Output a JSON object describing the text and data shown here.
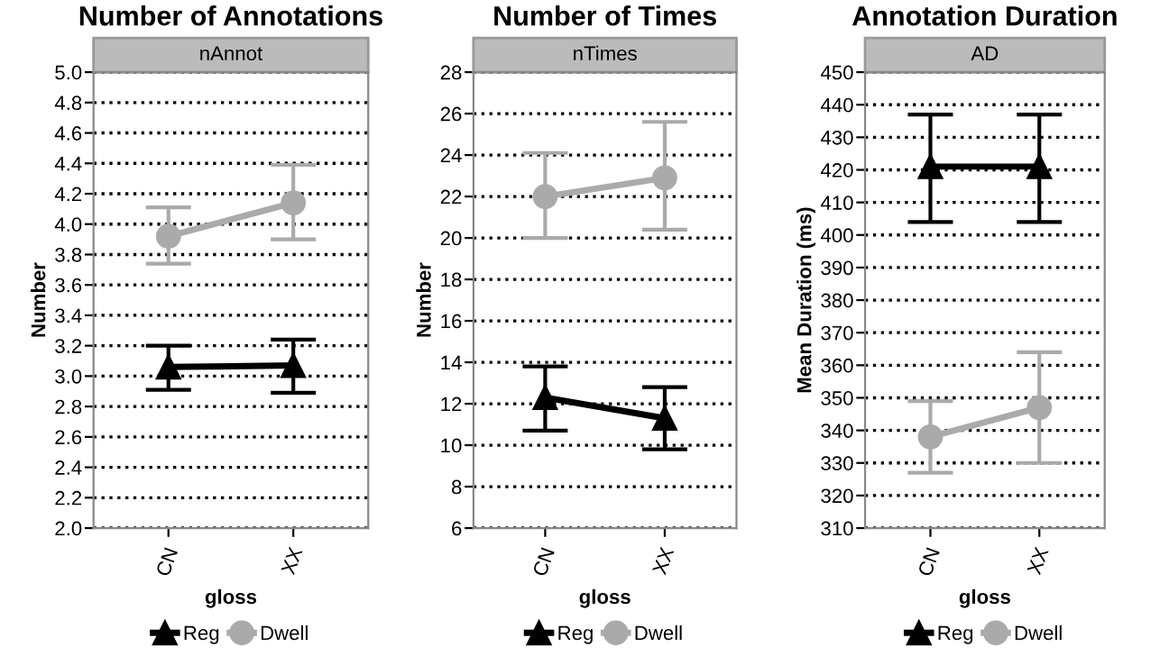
{
  "chart_data": [
    {
      "type": "line",
      "title": "Number of Annotations",
      "subtitle": "nAnnot",
      "xlabel": "gloss",
      "ylabel": "Number",
      "categories": [
        "CN",
        "XX"
      ],
      "ylim": [
        2.0,
        5.0
      ],
      "yticks": [
        {
          "value": 2.0,
          "label": "2.0"
        },
        2.2,
        2.4,
        2.6,
        2.8,
        {
          "value": 3.0,
          "label": "3.0"
        },
        3.2,
        3.4,
        3.6,
        3.8,
        {
          "value": 4.0,
          "label": "4.0"
        },
        4.2,
        4.4,
        4.6,
        4.8,
        {
          "value": 5.0,
          "label": "5.0"
        }
      ],
      "grid": "y",
      "legend": "bottom",
      "line_style": "solid",
      "series": [
        {
          "name": "Reg",
          "color": "#000000",
          "marker": "triangle",
          "values": [
            3.06,
            3.07
          ],
          "errors": [
            [
              2.91,
              3.2
            ],
            [
              2.89,
              3.24
            ]
          ]
        },
        {
          "name": "Dwell",
          "color": "#aaaaaa",
          "marker": "circle",
          "values": [
            3.92,
            4.14
          ],
          "errors": [
            [
              3.74,
              4.11
            ],
            [
              3.9,
              4.39
            ]
          ]
        }
      ]
    },
    {
      "type": "line",
      "title": "Number of Times",
      "subtitle": "nTimes",
      "xlabel": "gloss",
      "ylabel": "Number",
      "categories": [
        "CN",
        "XX"
      ],
      "ylim": [
        6,
        28
      ],
      "yticks": [
        6,
        8,
        10,
        12,
        14,
        16,
        18,
        20,
        22,
        24,
        26,
        28
      ],
      "grid": "y",
      "legend": "bottom",
      "line_style": "solid",
      "series": [
        {
          "name": "Reg",
          "color": "#000000",
          "marker": "triangle",
          "values": [
            12.3,
            11.3
          ],
          "errors": [
            [
              10.7,
              13.8
            ],
            [
              9.8,
              12.8
            ]
          ]
        },
        {
          "name": "Dwell",
          "color": "#aaaaaa",
          "marker": "circle",
          "values": [
            22.0,
            22.9
          ],
          "errors": [
            [
              20.0,
              24.1
            ],
            [
              20.4,
              25.6
            ]
          ]
        }
      ]
    },
    {
      "type": "line",
      "title": "Annotation Duration",
      "subtitle": "AD",
      "xlabel": "gloss",
      "ylabel": "Mean Duration (ms)",
      "categories": [
        "CN",
        "XX"
      ],
      "ylim": [
        310,
        450
      ],
      "yticks": [
        310,
        320,
        330,
        340,
        350,
        360,
        370,
        380,
        390,
        400,
        410,
        420,
        430,
        440,
        450
      ],
      "grid": "y",
      "legend": "bottom",
      "line_style": "solid",
      "series": [
        {
          "name": "Reg",
          "color": "#000000",
          "marker": "triangle",
          "values": [
            421,
            421
          ],
          "errors": [
            [
              404,
              437
            ],
            [
              404,
              437
            ]
          ]
        },
        {
          "name": "Dwell",
          "color": "#aaaaaa",
          "marker": "circle",
          "values": [
            338,
            347
          ],
          "errors": [
            [
              327,
              349
            ],
            [
              330,
              364
            ]
          ]
        }
      ]
    }
  ]
}
